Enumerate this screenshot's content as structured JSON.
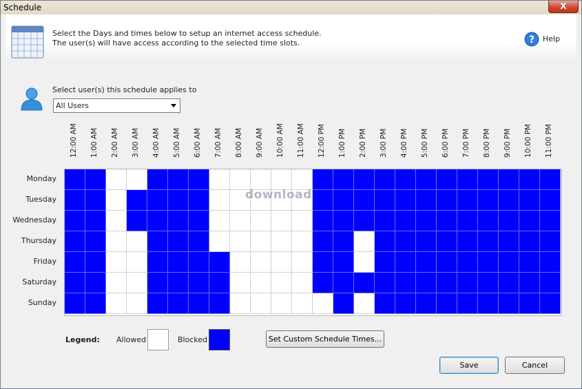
{
  "window": {
    "title": "Schedule",
    "close_label": "X"
  },
  "header": {
    "line1": "Select the Days and times below to setup an internet access schedule.",
    "line2": "The user(s) will have access according to the selected time slots.",
    "help_label": "Help"
  },
  "users": {
    "label": "Select user(s) this schedule applies to",
    "selected": "All Users"
  },
  "schedule": {
    "hours": [
      "12:00 AM",
      "1:00 AM",
      "2:00 AM",
      "3:00 AM",
      "4:00 AM",
      "5:00 AM",
      "6:00 AM",
      "7:00 AM",
      "8:00 AM",
      "9:00 AM",
      "10:00 AM",
      "11:00 AM",
      "12:00 PM",
      "1:00 PM",
      "2:00 PM",
      "3:00 PM",
      "4:00 PM",
      "5:00 PM",
      "6:00 PM",
      "7:00 PM",
      "8:00 PM",
      "9:00 PM",
      "10:00 PM",
      "11:00 PM"
    ],
    "days": [
      "Monday",
      "Tuesday",
      "Wednesday",
      "Thursday",
      "Friday",
      "Saturday",
      "Sunday"
    ],
    "blocked": [
      "110011100000111111111111",
      "110111100000111111111111",
      "110111100000111111111111",
      "110011100000110111111111",
      "110011110000110111111111",
      "110011110000111111111111",
      "110011110000010111111111"
    ]
  },
  "legend": {
    "label": "Legend:",
    "allowed": "Allowed",
    "blocked": "Blocked",
    "allowed_color": "#ffffff",
    "blocked_color": "#0000ff"
  },
  "watermark": "download",
  "buttons": {
    "custom": "Set Custom Schedule Times...",
    "save": "Save",
    "cancel": "Cancel"
  }
}
